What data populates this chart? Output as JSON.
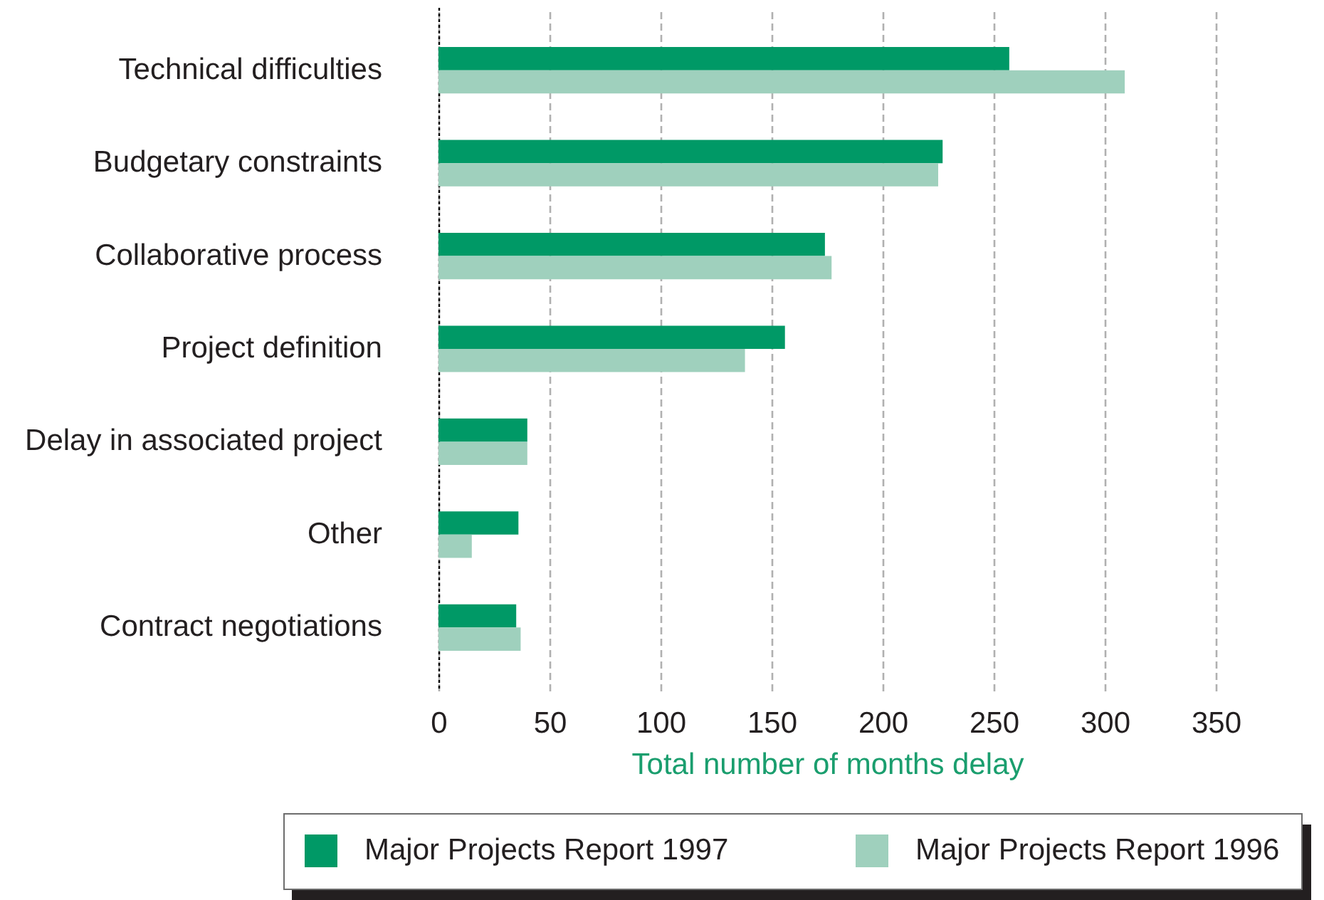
{
  "chart_data": {
    "type": "bar",
    "orientation": "horizontal",
    "categories": [
      "Technical difficulties",
      "Budgetary constraints",
      "Collaborative process",
      "Project definition",
      "Delay in associated project",
      "Other",
      "Contract negotiations"
    ],
    "series": [
      {
        "name": "Major Projects Report 1997",
        "color": "#009966",
        "values": [
          257,
          227,
          174,
          156,
          40,
          36,
          35
        ]
      },
      {
        "name": "Major Projects Report 1996",
        "color": "#9fd0bd",
        "values": [
          309,
          225,
          177,
          138,
          40,
          15,
          37
        ]
      }
    ],
    "xlim": [
      0,
      350
    ],
    "xticks": [
      0,
      50,
      100,
      150,
      200,
      250,
      300,
      350
    ],
    "xlabel": "Total number of months delay",
    "grid": "x",
    "legend": "bottom"
  }
}
